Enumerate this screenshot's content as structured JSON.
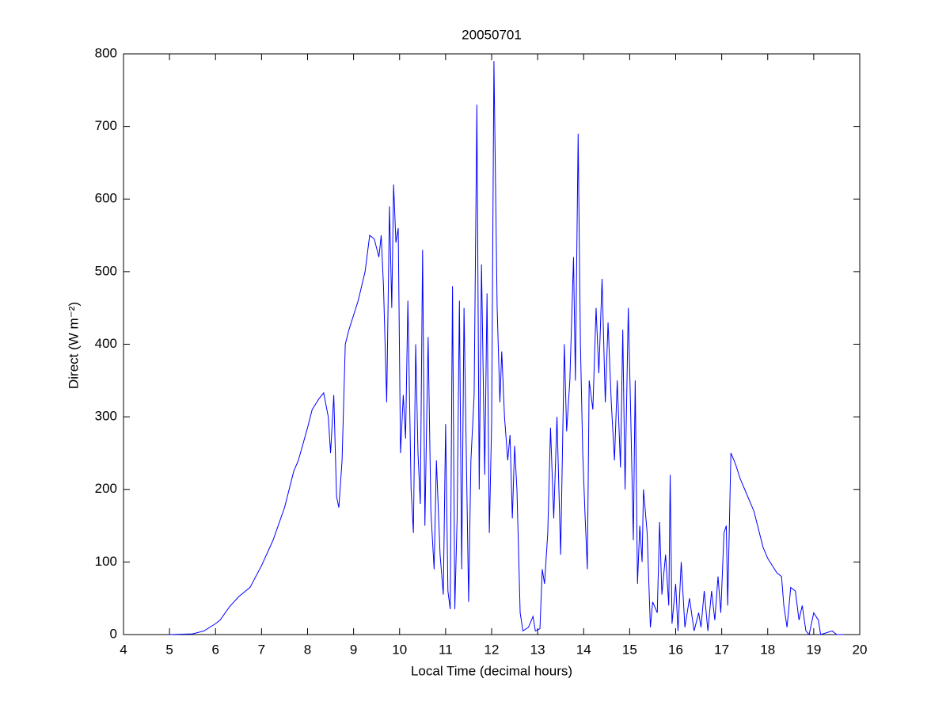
{
  "chart_data": {
    "type": "line",
    "title": "20050701",
    "xlabel": "Local Time (decimal hours)",
    "ylabel": "Direct (W m⁻²)",
    "xlim": [
      4,
      20
    ],
    "xticks": [
      4,
      5,
      6,
      7,
      8,
      9,
      10,
      11,
      12,
      13,
      14,
      15,
      16,
      17,
      18,
      19,
      20
    ],
    "ylim": [
      0,
      800
    ],
    "yticks": [
      0,
      100,
      200,
      300,
      400,
      500,
      600,
      700,
      800
    ],
    "series": [
      {
        "color": "#0000ff",
        "x": [
          5.0,
          5.5,
          5.75,
          6.0,
          6.1,
          6.3,
          6.5,
          6.75,
          7.0,
          7.25,
          7.5,
          7.7,
          7.8,
          8.0,
          8.1,
          8.25,
          8.35,
          8.45,
          8.5,
          8.57,
          8.63,
          8.68,
          8.75,
          8.82,
          8.9,
          9.0,
          9.1,
          9.25,
          9.35,
          9.45,
          9.55,
          9.6,
          9.65,
          9.72,
          9.78,
          9.83,
          9.87,
          9.92,
          9.97,
          10.02,
          10.08,
          10.13,
          10.18,
          10.25,
          10.3,
          10.35,
          10.4,
          10.45,
          10.5,
          10.55,
          10.62,
          10.68,
          10.75,
          10.8,
          10.88,
          10.95,
          11.0,
          11.05,
          11.1,
          11.15,
          11.2,
          11.25,
          11.3,
          11.35,
          11.4,
          11.5,
          11.55,
          11.62,
          11.68,
          11.73,
          11.78,
          11.85,
          11.9,
          11.95,
          12.0,
          12.05,
          12.12,
          12.18,
          12.22,
          12.28,
          12.35,
          12.4,
          12.45,
          12.5,
          12.55,
          12.62,
          12.68,
          12.8,
          12.9,
          12.95,
          13.05,
          13.1,
          13.15,
          13.22,
          13.28,
          13.35,
          13.42,
          13.5,
          13.58,
          13.63,
          13.7,
          13.78,
          13.82,
          13.88,
          13.93,
          13.98,
          14.03,
          14.08,
          14.12,
          14.2,
          14.27,
          14.33,
          14.4,
          14.47,
          14.53,
          14.6,
          14.67,
          14.73,
          14.8,
          14.85,
          14.9,
          14.97,
          15.02,
          15.08,
          15.12,
          15.17,
          15.22,
          15.27,
          15.3,
          15.38,
          15.45,
          15.5,
          15.6,
          15.65,
          15.7,
          15.78,
          15.85,
          15.88,
          15.92,
          16.0,
          16.05,
          16.12,
          16.2,
          16.3,
          16.4,
          16.5,
          16.55,
          16.62,
          16.7,
          16.78,
          16.85,
          16.92,
          16.98,
          17.05,
          17.1,
          17.13,
          17.2,
          17.3,
          17.4,
          17.5,
          17.7,
          17.9,
          18.0,
          18.1,
          18.2,
          18.3,
          18.35,
          18.42,
          18.5,
          18.6,
          18.68,
          18.75,
          18.83,
          18.9,
          19.0,
          19.1,
          19.15,
          19.4,
          19.5,
          19.65
        ],
        "values": [
          0,
          1,
          5,
          15,
          20,
          38,
          52,
          65,
          95,
          130,
          175,
          225,
          240,
          285,
          310,
          325,
          333,
          300,
          250,
          330,
          190,
          175,
          240,
          400,
          420,
          440,
          460,
          500,
          550,
          545,
          520,
          550,
          480,
          320,
          590,
          450,
          620,
          540,
          560,
          250,
          330,
          270,
          460,
          200,
          140,
          400,
          250,
          180,
          530,
          150,
          410,
          170,
          90,
          240,
          110,
          55,
          290,
          60,
          35,
          480,
          35,
          160,
          460,
          90,
          450,
          45,
          240,
          330,
          730,
          200,
          510,
          220,
          470,
          140,
          290,
          790,
          450,
          320,
          390,
          300,
          240,
          275,
          160,
          260,
          200,
          30,
          5,
          10,
          25,
          5,
          8,
          90,
          70,
          140,
          285,
          160,
          300,
          110,
          400,
          280,
          350,
          520,
          350,
          690,
          400,
          250,
          165,
          90,
          350,
          310,
          450,
          360,
          490,
          320,
          430,
          320,
          240,
          350,
          230,
          420,
          200,
          450,
          310,
          130,
          350,
          70,
          150,
          100,
          200,
          140,
          10,
          45,
          30,
          155,
          55,
          110,
          40,
          220,
          15,
          70,
          5,
          100,
          10,
          50,
          5,
          30,
          10,
          60,
          5,
          60,
          20,
          80,
          30,
          140,
          150,
          40,
          250,
          235,
          215,
          200,
          170,
          120,
          105,
          95,
          85,
          80,
          40,
          10,
          65,
          60,
          20,
          40,
          5,
          0,
          30,
          20,
          0,
          5,
          0,
          0
        ]
      }
    ]
  }
}
